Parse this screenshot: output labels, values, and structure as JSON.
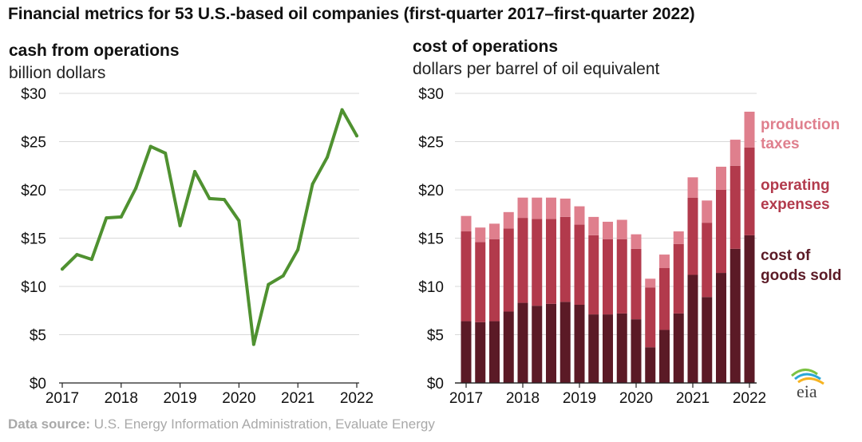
{
  "title": "Financial metrics for 53 U.S.-based oil companies (first-quarter 2017–first-quarter 2022)",
  "source_label": "Data source:",
  "source_text": "U.S. Energy Information Administration, Evaluate Energy",
  "logo_text": "eia",
  "chart_data": [
    {
      "type": "line",
      "title": "cash from operations",
      "subtitle": "billion dollars",
      "ylim": [
        0,
        30
      ],
      "y_ticks": [
        "$30",
        "$25",
        "$20",
        "$15",
        "$10",
        "$5",
        "$0"
      ],
      "y_tick_values": [
        30,
        25,
        20,
        15,
        10,
        5,
        0
      ],
      "x_ticks": [
        "2017",
        "2018",
        "2019",
        "2020",
        "2021",
        "2022"
      ],
      "x_tick_values": [
        2017,
        2018,
        2019,
        2020,
        2021,
        2022
      ],
      "grid": "horizontal",
      "color": "#4f9130",
      "x": [
        2017.0,
        2017.25,
        2017.5,
        2017.75,
        2018.0,
        2018.25,
        2018.5,
        2018.75,
        2019.0,
        2019.25,
        2019.5,
        2019.75,
        2020.0,
        2020.25,
        2020.5,
        2020.75,
        2021.0,
        2021.25,
        2021.5,
        2021.75,
        2022.0
      ],
      "values": [
        11.8,
        13.3,
        12.8,
        17.1,
        17.2,
        20.2,
        24.5,
        23.8,
        16.3,
        21.9,
        19.1,
        19.0,
        16.8,
        4.0,
        10.2,
        11.1,
        13.8,
        20.6,
        23.4,
        28.3,
        25.6
      ]
    },
    {
      "type": "bar",
      "stacked": true,
      "title": "cost of operations",
      "subtitle": "dollars per barrel of oil equivalent",
      "ylim": [
        0,
        30
      ],
      "y_ticks": [
        "$30",
        "$25",
        "$20",
        "$15",
        "$10",
        "$5",
        "$0"
      ],
      "y_tick_values": [
        30,
        25,
        20,
        15,
        10,
        5,
        0
      ],
      "x_ticks": [
        "2017",
        "2018",
        "2019",
        "2020",
        "2021",
        "2022"
      ],
      "x_tick_values": [
        2017,
        2018,
        2019,
        2020,
        2021,
        2022
      ],
      "grid": "horizontal",
      "categories": [
        "2017 Q1",
        "2017 Q2",
        "2017 Q3",
        "2017 Q4",
        "2018 Q1",
        "2018 Q2",
        "2018 Q3",
        "2018 Q4",
        "2019 Q1",
        "2019 Q2",
        "2019 Q3",
        "2019 Q4",
        "2020 Q1",
        "2020 Q2",
        "2020 Q3",
        "2020 Q4",
        "2021 Q1",
        "2021 Q2",
        "2021 Q3",
        "2021 Q4",
        "2022 Q1"
      ],
      "x": [
        2017.0,
        2017.25,
        2017.5,
        2017.75,
        2018.0,
        2018.25,
        2018.5,
        2018.75,
        2019.0,
        2019.25,
        2019.5,
        2019.75,
        2020.0,
        2020.25,
        2020.5,
        2020.75,
        2021.0,
        2021.25,
        2021.5,
        2021.75,
        2022.0
      ],
      "legend_position": "right",
      "series": [
        {
          "name": "cost of goods sold",
          "color": "#5b1a26",
          "values": [
            6.4,
            6.3,
            6.4,
            7.4,
            8.3,
            8.0,
            8.2,
            8.4,
            8.1,
            7.1,
            7.1,
            7.2,
            6.6,
            3.7,
            5.5,
            7.2,
            11.2,
            8.9,
            11.4,
            13.9,
            15.3
          ]
        },
        {
          "name": "operating expenses",
          "color": "#b23a4c",
          "values": [
            9.3,
            8.3,
            8.5,
            8.6,
            8.8,
            9.0,
            8.8,
            8.8,
            8.3,
            8.2,
            7.8,
            7.7,
            7.3,
            6.2,
            6.4,
            7.2,
            8.0,
            7.7,
            8.6,
            8.6,
            9.1
          ]
        },
        {
          "name": "production taxes",
          "color": "#df7f8d",
          "values": [
            1.6,
            1.5,
            1.6,
            1.7,
            2.1,
            2.2,
            2.2,
            1.9,
            1.9,
            1.9,
            1.8,
            2.0,
            1.5,
            0.9,
            1.4,
            1.3,
            2.1,
            2.3,
            2.4,
            2.7,
            3.7
          ]
        }
      ],
      "legend": [
        {
          "key": "production taxes",
          "lines": [
            "production",
            "taxes"
          ],
          "color": "#df7f8d"
        },
        {
          "key": "operating expenses",
          "lines": [
            "operating",
            "expenses"
          ],
          "color": "#b23a4c"
        },
        {
          "key": "cost of goods sold",
          "lines": [
            "cost of",
            "goods sold"
          ],
          "color": "#5b1a26"
        }
      ]
    }
  ]
}
